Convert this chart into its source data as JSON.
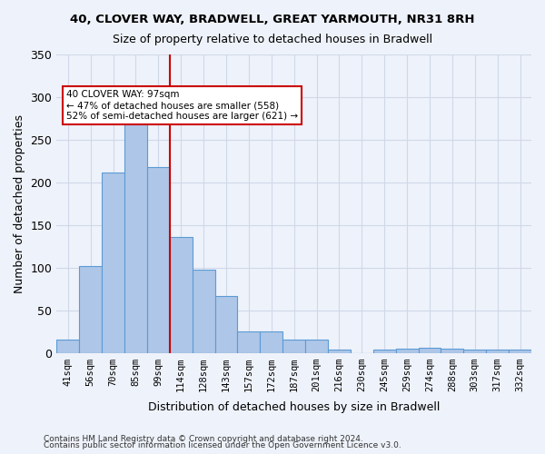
{
  "title1": "40, CLOVER WAY, BRADWELL, GREAT YARMOUTH, NR31 8RH",
  "title2": "Size of property relative to detached houses in Bradwell",
  "xlabel": "Distribution of detached houses by size in Bradwell",
  "ylabel": "Number of detached properties",
  "categories": [
    "41sqm",
    "56sqm",
    "70sqm",
    "85sqm",
    "99sqm",
    "114sqm",
    "128sqm",
    "143sqm",
    "157sqm",
    "172sqm",
    "187sqm",
    "201sqm",
    "216sqm",
    "230sqm",
    "245sqm",
    "259sqm",
    "274sqm",
    "288sqm",
    "303sqm",
    "317sqm",
    "332sqm"
  ],
  "values": [
    15,
    102,
    211,
    281,
    218,
    136,
    97,
    67,
    25,
    25,
    15,
    15,
    4,
    0,
    4,
    5,
    6,
    5,
    4,
    4,
    4
  ],
  "bar_color": "#aec6e8",
  "bar_edge_color": "#5b9bd5",
  "grid_color": "#d0d8e8",
  "background_color": "#eef2fa",
  "vline_x": 4.5,
  "vline_color": "#cc0000",
  "annotation_text": "40 CLOVER WAY: 97sqm\n← 47% of detached houses are smaller (558)\n52% of semi-detached houses are larger (621) →",
  "annotation_box_color": "#ffffff",
  "annotation_box_edge": "#cc0000",
  "footnote1": "Contains HM Land Registry data © Crown copyright and database right 2024.",
  "footnote2": "Contains public sector information licensed under the Open Government Licence v3.0.",
  "ylim": [
    0,
    350
  ],
  "yticks": [
    0,
    50,
    100,
    150,
    200,
    250,
    300,
    350
  ]
}
